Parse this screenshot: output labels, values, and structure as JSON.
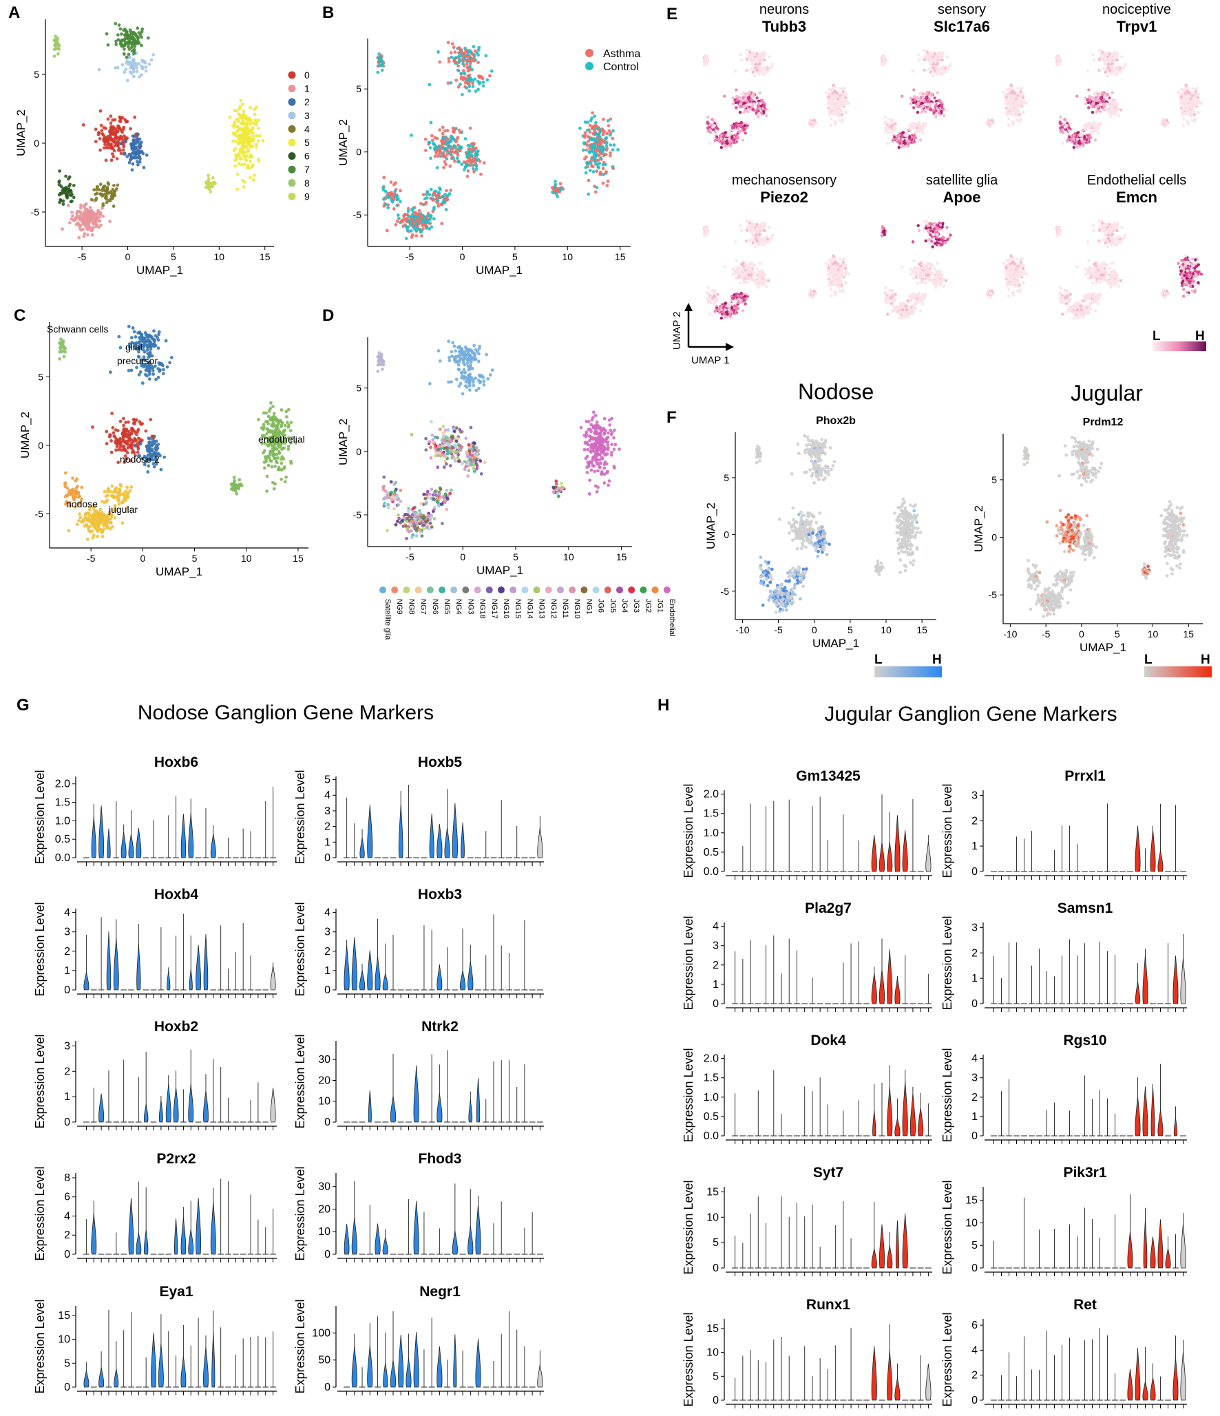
{
  "panel_letters": [
    "A",
    "B",
    "C",
    "D",
    "E",
    "F",
    "G",
    "H"
  ],
  "axis_titles": {
    "umap1": "UMAP_1",
    "umap2": "UMAP_2",
    "expression": "Expression Level",
    "umap1_alt": "UMAP 1",
    "umap2_alt": "UMAP 2"
  },
  "umap_ticks_x": [
    "-5",
    "0",
    "5",
    "10",
    "15"
  ],
  "umap_ticks_x_f": [
    "-10",
    "-5",
    "0",
    "5",
    "10",
    "15"
  ],
  "umap_ticks_y": [
    "5",
    "0",
    "-5"
  ],
  "panelA": {
    "legend": [
      "0",
      "1",
      "2",
      "3",
      "4",
      "5",
      "6",
      "7",
      "8",
      "9"
    ]
  },
  "panelB": {
    "legend": [
      "Asthma",
      "Control"
    ]
  },
  "panelC": {
    "labels": [
      "Schwann cells",
      "glial",
      "precursor",
      "endothelial",
      "nodose 2",
      "nodose",
      "jugular"
    ]
  },
  "panelD": {
    "legend": [
      "Satellite glia",
      "NG9",
      "NG8",
      "NG7",
      "NG6",
      "NG5",
      "NG4",
      "NG3",
      "NG18",
      "NG17",
      "NG16",
      "NG15",
      "NG14",
      "NG13",
      "NG12",
      "NG11",
      "NG10",
      "NG1",
      "JG6",
      "JG5",
      "JG4",
      "JG3",
      "JG2",
      "JG1",
      "Endothelial"
    ]
  },
  "panelE": {
    "features": [
      {
        "category": "neurons",
        "gene": "Tubb3"
      },
      {
        "category": "sensory",
        "gene": "Slc17a6"
      },
      {
        "category": "nociceptive",
        "gene": "Trpv1"
      },
      {
        "category": "mechanosensory",
        "gene": "Piezo2"
      },
      {
        "category": "satellite glia",
        "gene": "Apoe"
      },
      {
        "category": "Endothelial cells",
        "gene": "Emcn"
      }
    ],
    "scale_low": "L",
    "scale_high": "H"
  },
  "panelF": {
    "left": {
      "title": "Nodose",
      "gene": "Phox2b"
    },
    "right": {
      "title": "Jugular",
      "gene": "Prdm12"
    },
    "scale_low": "L",
    "scale_high": "H"
  },
  "colors": {
    "asthma": "#ee6e6a",
    "control": "#1fbfc4",
    "nodose_blue": "#2e86e0",
    "jugular_red": "#e8321e",
    "grey": "#cfcfcf",
    "magenta": "#a0186a"
  },
  "chart_data": [
    {
      "type": "violin",
      "panel": "G",
      "title": "Nodose Ganglion Gene Markers",
      "ylabel": "Expression Level",
      "groups_per_plot": 26,
      "plots": [
        {
          "gene": "Hoxb6",
          "yticks": [
            "0.0",
            "0.5",
            "1.0",
            "1.5",
            "2.0"
          ],
          "ymax": 2.2
        },
        {
          "gene": "Hoxb5",
          "yticks": [
            "0",
            "1",
            "2",
            "3",
            "4",
            "5"
          ],
          "ymax": 5.2
        },
        {
          "gene": "Hoxb4",
          "yticks": [
            "0",
            "1",
            "2",
            "3",
            "4"
          ],
          "ymax": 4.2
        },
        {
          "gene": "Hoxb3",
          "yticks": [
            "0",
            "1",
            "2",
            "3",
            "4"
          ],
          "ymax": 4.2
        },
        {
          "gene": "Hoxb2",
          "yticks": [
            "0",
            "1",
            "2",
            "3"
          ],
          "ymax": 3.2
        },
        {
          "gene": "Ntrk2",
          "yticks": [
            "0",
            "10",
            "20",
            "30"
          ],
          "ymax": 39
        },
        {
          "gene": "P2rx2",
          "yticks": [
            "0",
            "2",
            "4",
            "6",
            "8"
          ],
          "ymax": 8.5
        },
        {
          "gene": "Fhod3",
          "yticks": [
            "0",
            "10",
            "20",
            "30"
          ],
          "ymax": 36
        },
        {
          "gene": "Eya1",
          "yticks": [
            "0",
            "5",
            "10",
            "15"
          ],
          "ymax": 17
        },
        {
          "gene": "Negr1",
          "yticks": [
            "0",
            "50",
            "100"
          ],
          "ymax": 150
        }
      ]
    },
    {
      "type": "violin",
      "panel": "H",
      "title": "Jugular Ganglion Gene Markers",
      "ylabel": "Expression Level",
      "groups_per_plot": 26,
      "plots": [
        {
          "gene": "Gm13425",
          "yticks": [
            "0.0",
            "0.5",
            "1.0",
            "1.5",
            "2.0"
          ],
          "ymax": 2.1
        },
        {
          "gene": "Prrxl1",
          "yticks": [
            "0",
            "1",
            "2",
            "3"
          ],
          "ymax": 3.2
        },
        {
          "gene": "Pla2g7",
          "yticks": [
            "0",
            "1",
            "2",
            "3",
            "4"
          ],
          "ymax": 4.2
        },
        {
          "gene": "Samsn1",
          "yticks": [
            "0",
            "1",
            "2",
            "3"
          ],
          "ymax": 3.2
        },
        {
          "gene": "Dok4",
          "yticks": [
            "0.0",
            "0.5",
            "1.0",
            "1.5",
            "2.0"
          ],
          "ymax": 2.1
        },
        {
          "gene": "Rgs10",
          "yticks": [
            "0",
            "1",
            "2",
            "3",
            "4"
          ],
          "ymax": 4.2
        },
        {
          "gene": "Syt7",
          "yticks": [
            "0",
            "5",
            "10",
            "15"
          ],
          "ymax": 16
        },
        {
          "gene": "Pik3r1",
          "yticks": [
            "0",
            "5",
            "10",
            "15"
          ],
          "ymax": 18
        },
        {
          "gene": "Runx1",
          "yticks": [
            "0",
            "5",
            "10",
            "15"
          ],
          "ymax": 17
        },
        {
          "gene": "Ret",
          "yticks": [
            "0",
            "2",
            "4",
            "6"
          ],
          "ymax": 6.5
        }
      ]
    }
  ]
}
